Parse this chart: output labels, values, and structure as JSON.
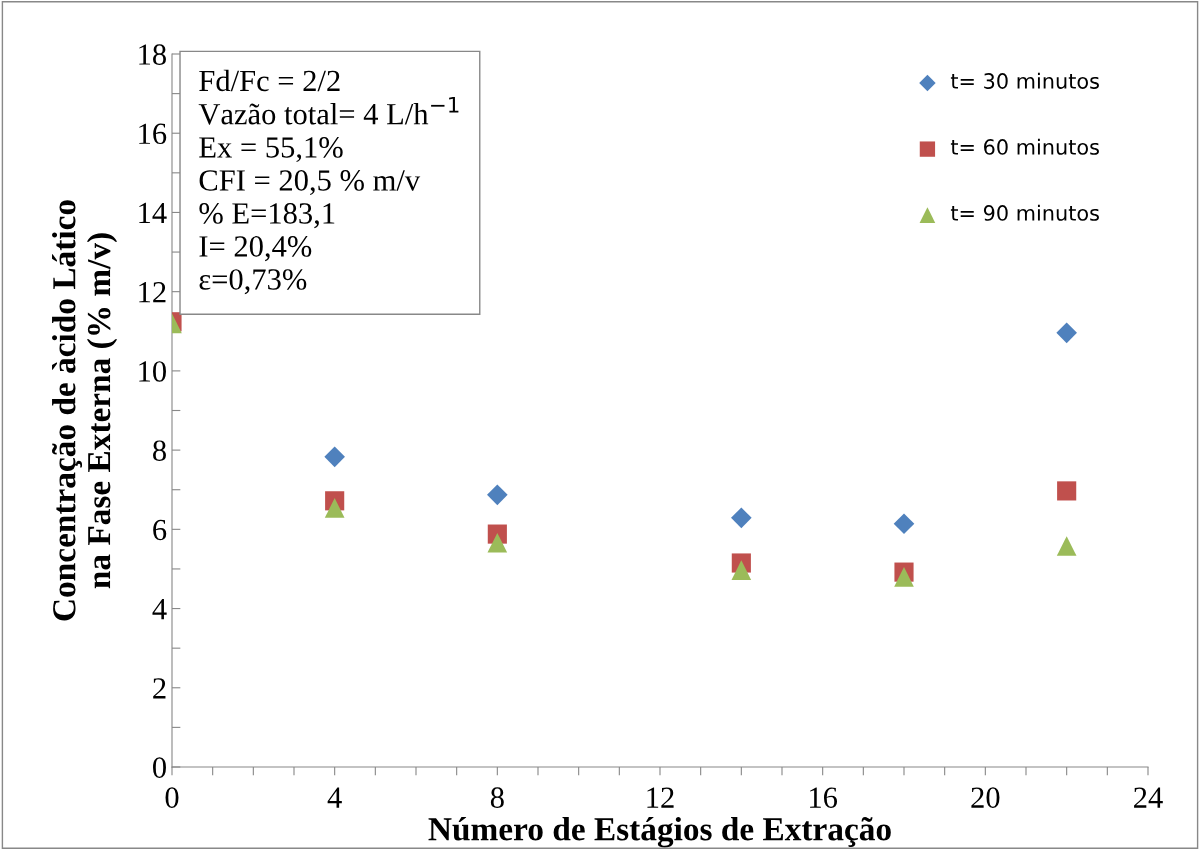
{
  "chart_data": {
    "type": "scatter",
    "xlabel": "Número de Estágios de Extração",
    "ylabel": "Concentração de àcido Lático\nna Fase Externa (% m/v)",
    "x": [
      0,
      4,
      8,
      14,
      18,
      22
    ],
    "series": [
      {
        "name": "t= 30 minutos",
        "color": "#4f81bd",
        "marker": "diamond",
        "values": [
          null,
          7.83,
          6.87,
          6.29,
          6.14,
          10.96
        ]
      },
      {
        "name": "t= 60 minutos",
        "color": "#c0504d",
        "marker": "square",
        "values": [
          11.24,
          6.72,
          5.88,
          5.15,
          4.92,
          6.97
        ]
      },
      {
        "name": "t= 90 minutos",
        "color": "#9bbb59",
        "marker": "triangle",
        "values": [
          11.2,
          6.54,
          5.66,
          4.97,
          4.8,
          5.58
        ]
      }
    ],
    "xlim": [
      0,
      24
    ],
    "ylim": [
      0,
      18
    ],
    "xticks": [
      0,
      {
        "value": 1,
        "label": null
      },
      {
        "value": 2,
        "label": null
      },
      {
        "value": 3,
        "label": null
      },
      4,
      {
        "value": 5,
        "label": null
      },
      {
        "value": 6,
        "label": null
      },
      {
        "value": 7,
        "label": null
      },
      8,
      {
        "value": 9,
        "label": null
      },
      {
        "value": 10,
        "label": null
      },
      {
        "value": 11,
        "label": null
      },
      12,
      {
        "value": 13,
        "label": null
      },
      {
        "value": 14,
        "label": null
      },
      {
        "value": 15,
        "label": null
      },
      16,
      {
        "value": 17,
        "label": null
      },
      {
        "value": 18,
        "label": null
      },
      {
        "value": 19,
        "label": null
      },
      20,
      {
        "value": 21,
        "label": null
      },
      {
        "value": 22,
        "label": null
      },
      {
        "value": 23,
        "label": null
      },
      24
    ],
    "yticks": [
      0,
      {
        "value": 1,
        "label": null
      },
      2,
      {
        "value": 3,
        "label": null
      },
      4,
      {
        "value": 5,
        "label": null
      },
      6,
      {
        "value": 7,
        "label": null
      },
      8,
      {
        "value": 9,
        "label": null
      },
      10,
      {
        "value": 11,
        "label": null
      },
      12,
      {
        "value": 13,
        "label": null
      },
      14,
      {
        "value": 15,
        "label": null
      },
      16,
      {
        "value": 17,
        "label": null
      },
      18
    ],
    "annotations": [
      "Fd/Fc = 2/2\nVazão total= 4 L/h$^{−1}$\nEx = 55,1%\nCFI = 20,5 % m/v\n% E=183,1\nI= 20,4%\nε=0,73%"
    ],
    "legend": "top right",
    "grid": false
  }
}
